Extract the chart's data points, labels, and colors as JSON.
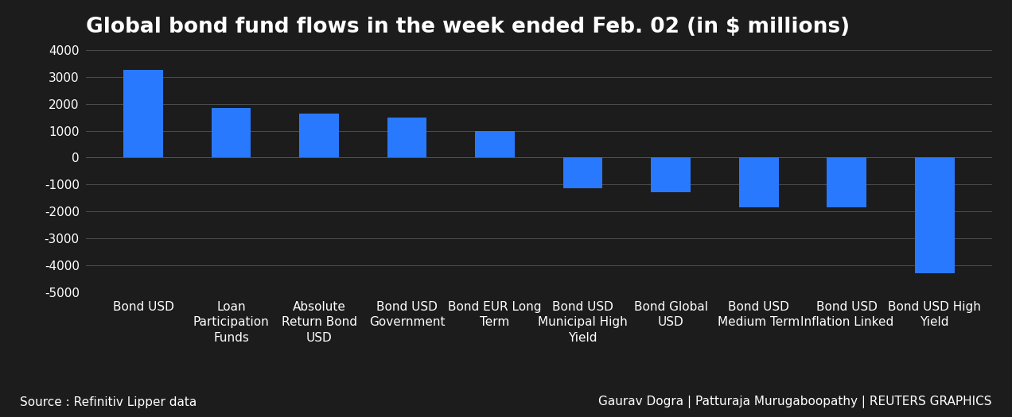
{
  "title": "Global bond fund flows in the week ended Feb. 02 (in $ millions)",
  "categories": [
    "Bond USD",
    "Loan\nParticipation\nFunds",
    "Absolute\nReturn Bond\nUSD",
    "Bond USD\nGovernment",
    "Bond EUR Long\nTerm",
    "Bond USD\nMunicipal High\nYield",
    "Bond Global\nUSD",
    "Bond USD\nMedium Term",
    "Bond USD\nInflation Linked",
    "Bond USD High\nYield"
  ],
  "values": [
    3250,
    1850,
    1650,
    1500,
    1000,
    -1150,
    -1300,
    -1850,
    -1850,
    -4300
  ],
  "bar_color": "#2979ff",
  "background_color": "#1c1c1c",
  "text_color": "#ffffff",
  "grid_color": "#555555",
  "ylim": [
    -5000,
    4000
  ],
  "yticks": [
    -5000,
    -4000,
    -3000,
    -2000,
    -1000,
    0,
    1000,
    2000,
    3000,
    4000
  ],
  "source_text": "Source : Refinitiv Lipper data",
  "credit_text": "Gaurav Dogra | Patturaja Murugaboopathy | REUTERS GRAPHICS",
  "title_fontsize": 19,
  "tick_fontsize": 11,
  "source_fontsize": 11,
  "bar_width": 0.45
}
